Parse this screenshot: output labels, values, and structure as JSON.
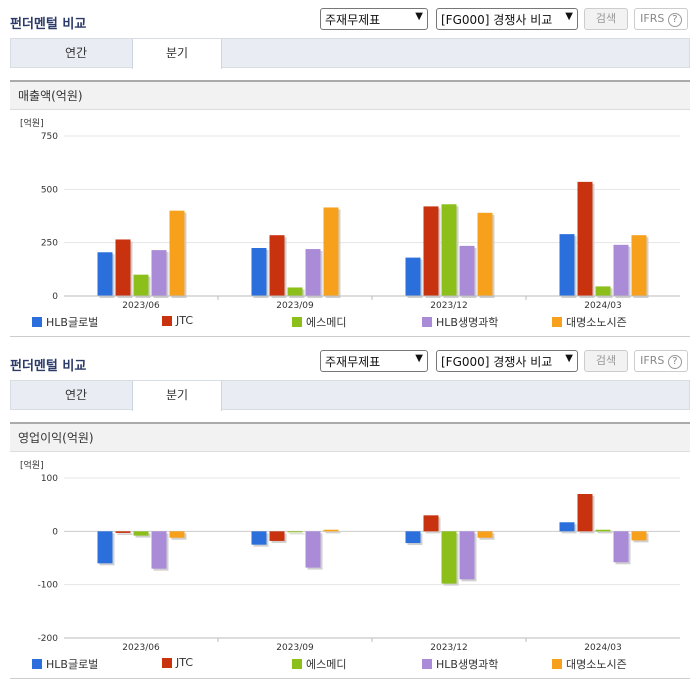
{
  "panels": [
    {
      "title": "펀더멘털 비교",
      "select1": "주재무제표",
      "select2": "[FG000] 경쟁사 비교",
      "search_label": "검색",
      "ifrs_label": "IFRS",
      "help_icon": "?",
      "tabs": [
        "연간",
        "분기"
      ],
      "active_tab": "분기",
      "section_title": "매출액(억원)",
      "unit": "[억원]"
    },
    {
      "title": "펀더멘털 비교",
      "select1": "주재무제표",
      "select2": "[FG000] 경쟁사 비교",
      "search_label": "검색",
      "ifrs_label": "IFRS",
      "help_icon": "?",
      "tabs": [
        "연간",
        "분기"
      ],
      "active_tab": "분기",
      "section_title": "영업이익(억원)",
      "unit": "[억원]"
    }
  ],
  "colors": {
    "HLB글로벌": "#2a6fdb",
    "JTC": "#c8320e",
    "에스메디": "#8cbf1a",
    "HLB생명과학": "#a98bd8",
    "대명소노시즌": "#f7a01c"
  },
  "chart_data": [
    {
      "type": "bar",
      "title": "매출액(억원)",
      "ylabel": "[억원]",
      "ylim": [
        0,
        750
      ],
      "yticks": [
        0,
        250,
        500,
        750
      ],
      "grid": true,
      "legend": "bottom",
      "categories": [
        "2023/06",
        "2023/09",
        "2023/12",
        "2024/03"
      ],
      "series": [
        {
          "name": "HLB글로벌",
          "values": [
            205,
            225,
            180,
            290
          ]
        },
        {
          "name": "JTC",
          "values": [
            265,
            285,
            420,
            535
          ]
        },
        {
          "name": "에스메디",
          "values": [
            100,
            40,
            430,
            45
          ]
        },
        {
          "name": "HLB생명과학",
          "values": [
            215,
            220,
            235,
            240
          ]
        },
        {
          "name": "대명소노시즌",
          "values": [
            400,
            415,
            390,
            285
          ]
        }
      ]
    },
    {
      "type": "bar",
      "title": "영업이익(억원)",
      "ylabel": "[억원]",
      "ylim": [
        -200,
        100
      ],
      "yticks": [
        -200,
        -100,
        0,
        100
      ],
      "grid": true,
      "legend": "bottom",
      "categories": [
        "2023/06",
        "2023/09",
        "2023/12",
        "2024/03"
      ],
      "series": [
        {
          "name": "HLB글로벌",
          "values": [
            -60,
            -25,
            -22,
            17
          ]
        },
        {
          "name": "JTC",
          "values": [
            -3,
            -18,
            30,
            70
          ]
        },
        {
          "name": "에스메디",
          "values": [
            -8,
            0,
            -98,
            3
          ]
        },
        {
          "name": "HLB생명과학",
          "values": [
            -70,
            -68,
            -90,
            -58
          ]
        },
        {
          "name": "대명소노시즌",
          "values": [
            -12,
            3,
            -12,
            -17
          ]
        }
      ]
    }
  ]
}
